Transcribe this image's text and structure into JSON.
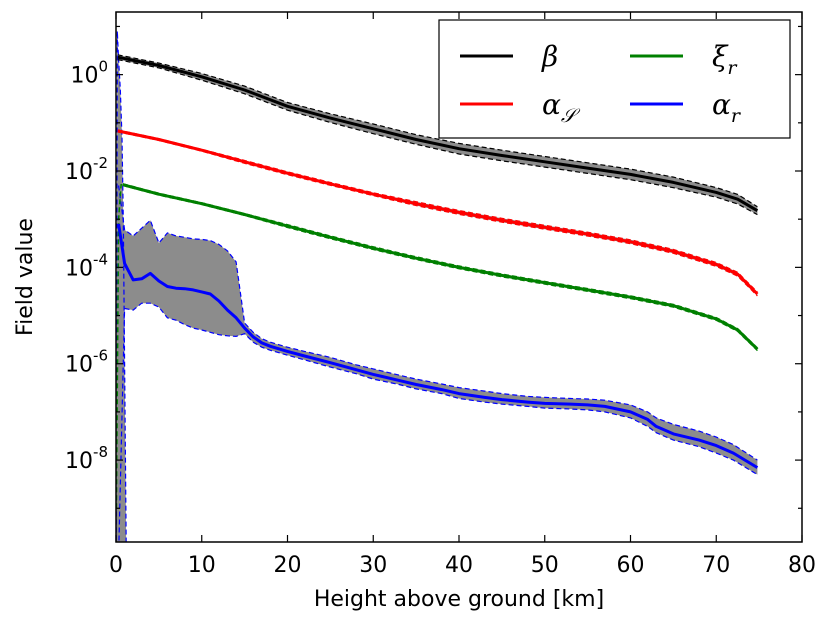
{
  "chart_data": {
    "type": "line",
    "title": "",
    "xlabel": "Height above ground [km]",
    "ylabel": "Field value",
    "xlim": [
      0,
      80
    ],
    "ylim_log10": [
      -9.7,
      1.3
    ],
    "yscale": "log",
    "x_ticks": [
      0,
      10,
      20,
      30,
      40,
      50,
      60,
      70,
      80
    ],
    "y_ticks": [
      {
        "mantissa": "10",
        "exponent": "0",
        "log10": 0
      },
      {
        "mantissa": "10",
        "exponent": "-2",
        "log10": -2
      },
      {
        "mantissa": "10",
        "exponent": "-4",
        "log10": -4
      },
      {
        "mantissa": "10",
        "exponent": "-6",
        "log10": -6
      },
      {
        "mantissa": "10",
        "exponent": "-8",
        "log10": -8
      }
    ],
    "legend_position": "top-right",
    "series": [
      {
        "name": "β",
        "legend_base": "β",
        "legend_sub": "",
        "color": "#000000",
        "x": [
          0.2,
          5,
          10,
          15,
          20,
          25,
          30,
          35,
          40,
          45,
          50,
          55,
          60,
          65,
          70,
          72.5,
          74.8
        ],
        "y": [
          2.3,
          1.55,
          0.9,
          0.48,
          0.22,
          0.125,
          0.075,
          0.045,
          0.029,
          0.021,
          0.0155,
          0.0115,
          0.0085,
          0.0058,
          0.0036,
          0.0026,
          0.0015
        ],
        "spread_log10": [
          0.05,
          0.05,
          0.07,
          0.08,
          0.08,
          0.09,
          0.1,
          0.1,
          0.11,
          0.11,
          0.11,
          0.11,
          0.11,
          0.11,
          0.1,
          0.1,
          0.08
        ]
      },
      {
        "name": "α_S",
        "legend_base": "α",
        "legend_sub": "𝒮",
        "color": "#ff0000",
        "x": [
          0.2,
          5,
          10,
          15,
          20,
          25,
          30,
          35,
          40,
          45,
          50,
          55,
          60,
          65,
          70,
          72.5,
          74.8
        ],
        "y": [
          0.068,
          0.045,
          0.027,
          0.0155,
          0.009,
          0.0054,
          0.0033,
          0.0021,
          0.00138,
          0.00095,
          0.00068,
          0.00049,
          0.00034,
          0.000215,
          0.000115,
          7.2e-05,
          2.8e-05
        ],
        "spread_log10": [
          0.02,
          0.02,
          0.02,
          0.03,
          0.03,
          0.03,
          0.03,
          0.04,
          0.04,
          0.04,
          0.04,
          0.04,
          0.04,
          0.04,
          0.04,
          0.04,
          0.04
        ]
      },
      {
        "name": "ξ_r",
        "legend_base": "ξ",
        "legend_sub": "r",
        "color": "#008000",
        "x": [
          0.8,
          5,
          10,
          15,
          20,
          25,
          30,
          35,
          40,
          45,
          50,
          55,
          60,
          65,
          70,
          72.5,
          74.8
        ],
        "y": [
          0.0052,
          0.0033,
          0.0021,
          0.00125,
          0.00072,
          0.00042,
          0.00025,
          0.000155,
          0.0001,
          6.8e-05,
          4.8e-05,
          3.4e-05,
          2.4e-05,
          1.6e-05,
          8.5e-06,
          5e-06,
          2e-06
        ],
        "spread_log10": [
          0.02,
          0.02,
          0.02,
          0.02,
          0.03,
          0.03,
          0.03,
          0.03,
          0.03,
          0.03,
          0.03,
          0.03,
          0.03,
          0.03,
          0.03,
          0.03,
          0.03
        ],
        "spike_x": [
          0.05,
          0.3,
          0.6,
          0.8
        ],
        "spike_y": [
          1e-09,
          0.001,
          0.0052,
          0.0052
        ]
      },
      {
        "name": "α_r",
        "legend_base": "α",
        "legend_sub": "r",
        "color": "#0000ff",
        "x": [
          0.3,
          1,
          2,
          3,
          4,
          5,
          6,
          7,
          8,
          9,
          10,
          11,
          12,
          13,
          14,
          15,
          16,
          17,
          18,
          20,
          22,
          25,
          28,
          30,
          33,
          35,
          38,
          40,
          43,
          45,
          48,
          50,
          53,
          55,
          57,
          60,
          62,
          63,
          65,
          68,
          70,
          72,
          74.8
        ],
        "y": [
          0.0008,
          0.00012,
          5.5e-05,
          5.8e-05,
          7.5e-05,
          5.2e-05,
          4e-05,
          3.7e-05,
          3.6e-05,
          3.4e-05,
          3.1e-05,
          2.8e-05,
          2e-05,
          1.3e-05,
          9e-06,
          5.5e-06,
          3.6e-06,
          2.7e-06,
          2.3e-06,
          1.8e-06,
          1.45e-06,
          1.05e-06,
          7.5e-07,
          6e-07,
          4.5e-07,
          3.7e-07,
          2.9e-07,
          2.4e-07,
          2e-07,
          1.8e-07,
          1.6e-07,
          1.5e-07,
          1.45e-07,
          1.4e-07,
          1.3e-07,
          1e-07,
          7e-08,
          5e-08,
          3.5e-08,
          2.6e-08,
          2e-08,
          1.4e-08,
          7e-09
        ],
        "upper": [
          0.005,
          0.0006,
          0.00045,
          0.00065,
          0.00095,
          0.00032,
          0.00052,
          0.00045,
          0.00042,
          0.00039,
          0.00038,
          0.00036,
          0.0003,
          0.00022,
          0.00013,
          7e-06,
          4.5e-06,
          3.3e-06,
          2.8e-06,
          2.2e-06,
          1.8e-06,
          1.35e-06,
          9.5e-07,
          7.8e-07,
          5.8e-07,
          4.8e-07,
          3.8e-07,
          3.2e-07,
          2.7e-07,
          2.4e-07,
          2.1e-07,
          2e-07,
          1.9e-07,
          1.85e-07,
          1.75e-07,
          1.4e-07,
          1e-07,
          7.5e-08,
          5.5e-08,
          4e-08,
          3e-08,
          2.1e-08,
          1e-08
        ],
        "lower": [
          1e-10,
          1.4e-05,
          1.3e-05,
          1.8e-05,
          1.8e-05,
          1.5e-05,
          9e-06,
          8e-06,
          6.5e-06,
          5.5e-06,
          5e-06,
          4.5e-06,
          4e-06,
          3.8e-06,
          3.7e-06,
          4.2e-06,
          2.8e-06,
          2.2e-06,
          1.9e-06,
          1.5e-06,
          1.2e-06,
          8.5e-07,
          6.2e-07,
          4.8e-07,
          3.7e-07,
          3e-07,
          2.4e-07,
          1.9e-07,
          1.6e-07,
          1.45e-07,
          1.3e-07,
          1.2e-07,
          1.15e-07,
          1.1e-07,
          1e-07,
          7.5e-08,
          5e-08,
          3.7e-08,
          2.6e-08,
          1.9e-08,
          1.4e-08,
          1e-08,
          5e-09
        ]
      }
    ],
    "near_ground_spike": {
      "x": [
        0.02,
        0.15,
        0.3,
        0.5,
        0.7,
        0.85,
        1.0,
        1.2
      ],
      "y": [
        1e-10,
        8,
        2,
        0.5,
        0.05,
        0.001,
        1e-06,
        1e-10
      ],
      "color": "#0000ff"
    }
  }
}
